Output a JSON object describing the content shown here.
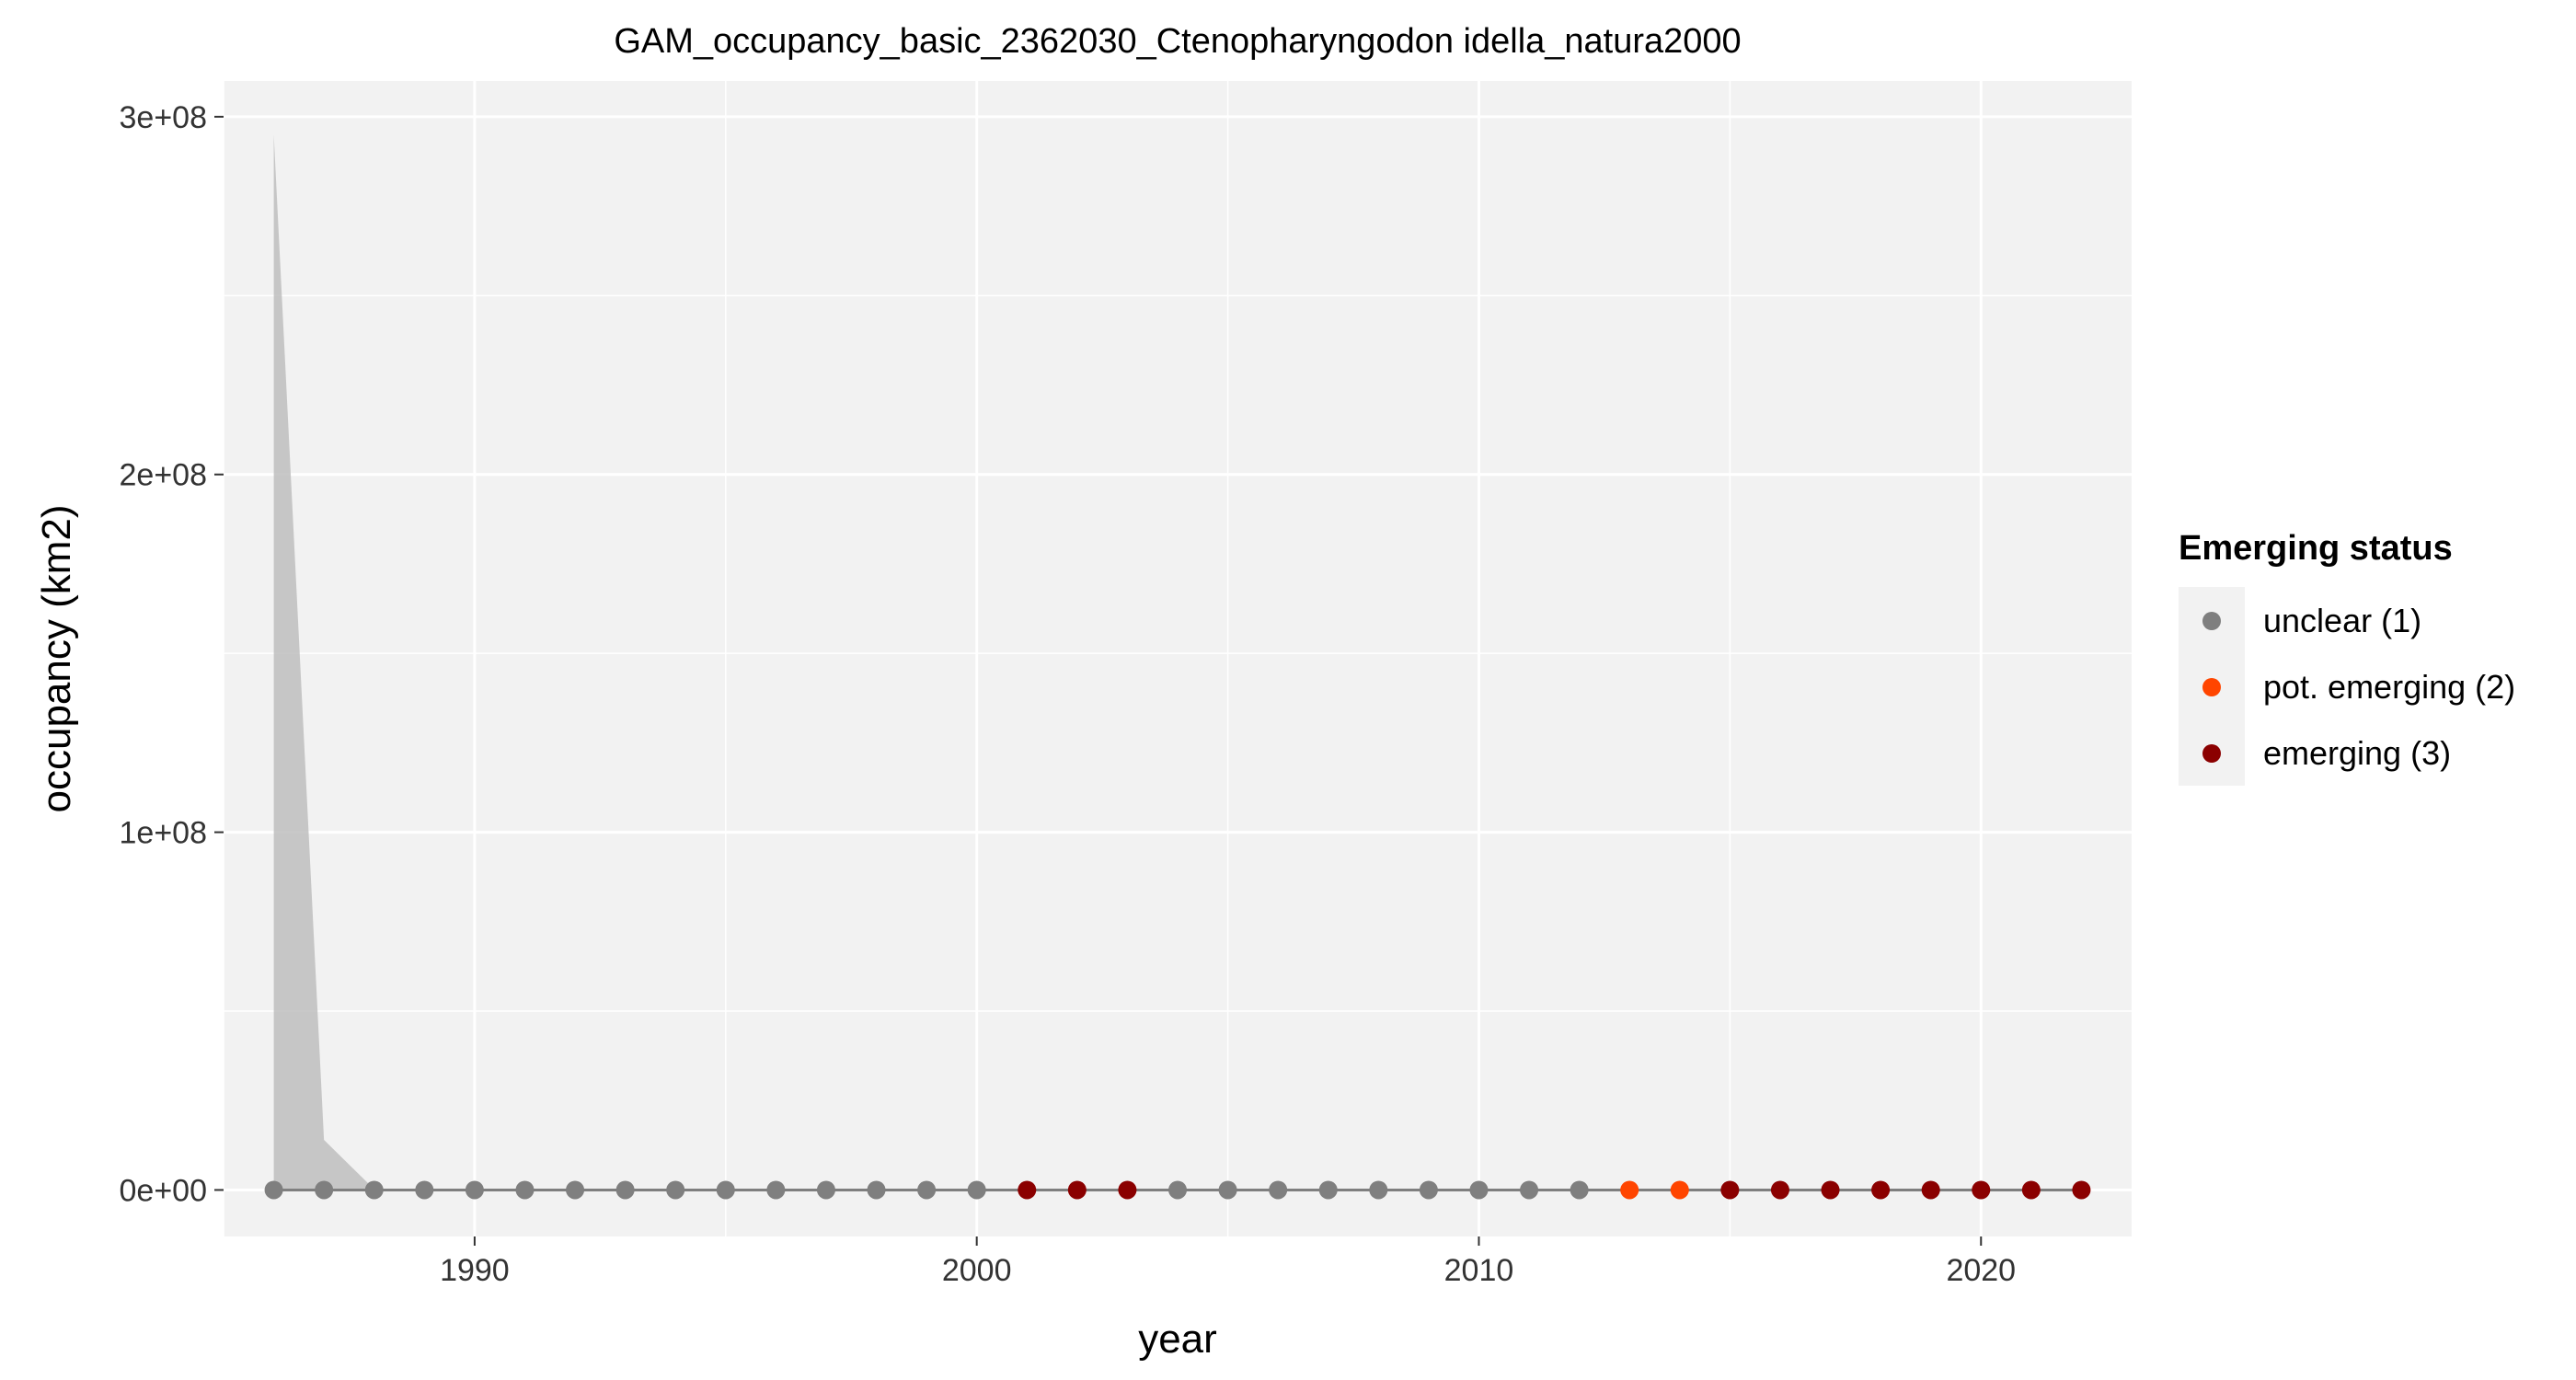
{
  "chart_data": {
    "type": "line",
    "title": "GAM_occupancy_basic_2362030_Ctenopharyngodon idella_natura2000",
    "xlabel": "year",
    "ylabel": "occupancy (km2)",
    "xlim": [
      1985,
      2023
    ],
    "ylim": [
      -13000000,
      310000000
    ],
    "x_ticks": [
      1990,
      2000,
      2010,
      2020
    ],
    "x_tick_labels": [
      "1990",
      "2000",
      "2010",
      "2020"
    ],
    "y_ticks": [
      0,
      100000000,
      200000000,
      300000000
    ],
    "y_tick_labels": [
      "0e+00",
      "1e+08",
      "2e+08",
      "3e+08"
    ],
    "grid": true,
    "legend": {
      "title": "Emerging status",
      "placement": "right",
      "entries": [
        {
          "label": "unclear (1)",
          "color": "#7f7f7f",
          "status": 1
        },
        {
          "label": "pot. emerging (2)",
          "color": "#ff4500",
          "status": 2
        },
        {
          "label": "emerging (3)",
          "color": "#8b0000",
          "status": 3
        }
      ]
    },
    "colors": {
      "panel": "#f2f2f2",
      "grid": "#ffffff",
      "line": "#7f7f7f",
      "ribbon": "#bebebe"
    },
    "years": [
      1986,
      1987,
      1988,
      1989,
      1990,
      1991,
      1992,
      1993,
      1994,
      1995,
      1996,
      1997,
      1998,
      1999,
      2000,
      2001,
      2002,
      2003,
      2004,
      2005,
      2006,
      2007,
      2008,
      2009,
      2010,
      2011,
      2012,
      2013,
      2014,
      2015,
      2016,
      2017,
      2018,
      2019,
      2020,
      2021,
      2022
    ],
    "fit": [
      0,
      0,
      0,
      0,
      0,
      0,
      0,
      0,
      0,
      0,
      0,
      0,
      0,
      0,
      0,
      0,
      0,
      0,
      0,
      0,
      0,
      0,
      0,
      0,
      0,
      0,
      0,
      0,
      0,
      0,
      0,
      0,
      0,
      0,
      0,
      0,
      0
    ],
    "upper": [
      295000000,
      14000000,
      200000,
      0,
      0,
      0,
      0,
      0,
      0,
      0,
      0,
      0,
      0,
      0,
      0,
      0,
      0,
      0,
      0,
      0,
      0,
      0,
      0,
      0,
      0,
      0,
      0,
      0,
      0,
      0,
      0,
      0,
      0,
      0,
      0,
      0,
      0
    ],
    "lower": [
      0,
      0,
      0,
      0,
      0,
      0,
      0,
      0,
      0,
      0,
      0,
      0,
      0,
      0,
      0,
      0,
      0,
      0,
      0,
      0,
      0,
      0,
      0,
      0,
      0,
      0,
      0,
      0,
      0,
      0,
      0,
      0,
      0,
      0,
      0,
      0,
      0
    ],
    "status": [
      1,
      1,
      1,
      1,
      1,
      1,
      1,
      1,
      1,
      1,
      1,
      1,
      1,
      1,
      1,
      3,
      3,
      3,
      1,
      1,
      1,
      1,
      1,
      1,
      1,
      1,
      1,
      2,
      2,
      3,
      3,
      3,
      3,
      3,
      3,
      3,
      3
    ]
  }
}
